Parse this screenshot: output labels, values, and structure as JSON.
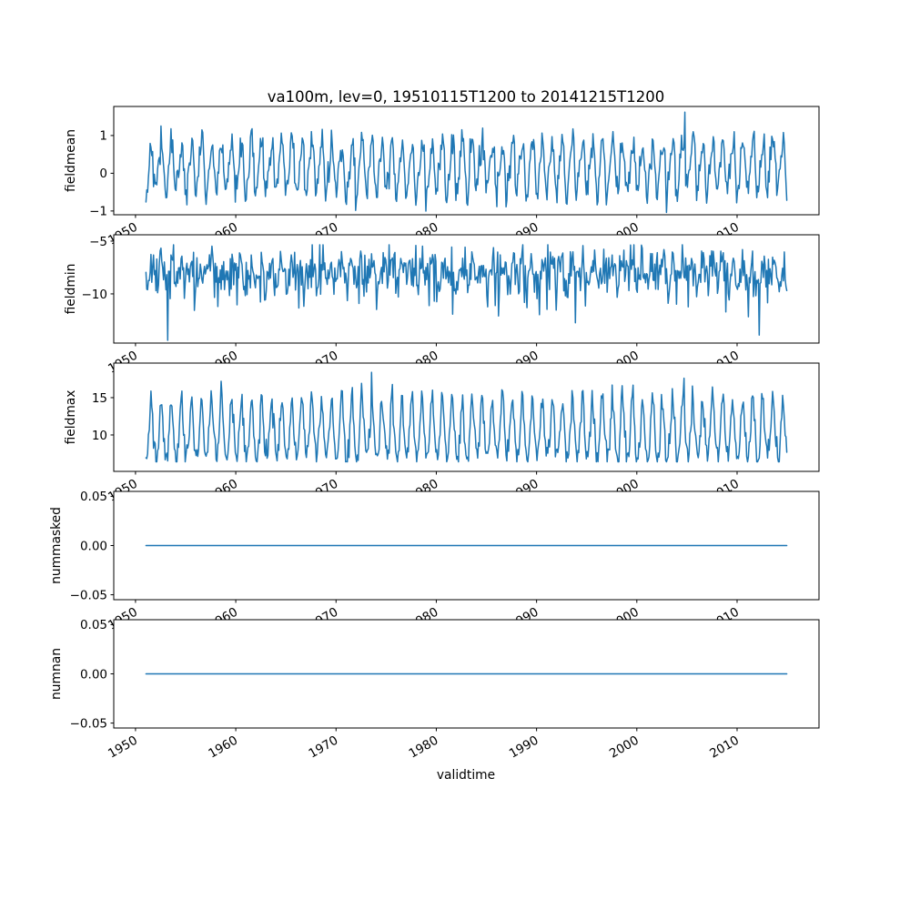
{
  "figure": {
    "title": "va100m, lev=0, 19510115T1200 to 20141215T1200",
    "xlabel": "validtime",
    "background": "#ffffff",
    "axis_color": "#000000",
    "line_color": "#1f77b4"
  },
  "chart_data": [
    {
      "type": "line",
      "ylabel": "fieldmean",
      "ylim": [
        -1.1,
        1.77
      ],
      "yticks": {
        "values": [
          1,
          0,
          -1
        ],
        "labels": [
          "1",
          "0",
          "−1"
        ]
      },
      "xlim": [
        1947.83,
        2018.17
      ],
      "xticks": {
        "values": [
          1950,
          1960,
          1970,
          1980,
          1990,
          2000,
          2010
        ],
        "labels": [
          "1950",
          "1960",
          "1970",
          "1980",
          "1990",
          "2000",
          "2010"
        ],
        "rotation_deg": 30
      },
      "x_start": 1951.042,
      "x_end": 2014.958,
      "n_points": 768,
      "line_color": "#1f77b4",
      "seed": 42,
      "pattern": {
        "kind": "seasonal",
        "base": 0.16,
        "amp": 0.66,
        "peak_month": 6.3,
        "amp2": 0.14,
        "peak2": 2,
        "noise": 0.21,
        "clamp": [
          -1.04,
          1.63
        ],
        "spikes": [
          {
            "x": 2004.83,
            "v": 1.62
          }
        ]
      }
    },
    {
      "type": "line",
      "ylabel": "fieldmin",
      "ylim": [
        -14.66,
        -4.4
      ],
      "yticks": {
        "values": [
          -5,
          -10
        ],
        "labels": [
          "−5",
          "−10"
        ]
      },
      "xlim": [
        1947.83,
        2018.17
      ],
      "xticks": {
        "values": [
          1950,
          1960,
          1970,
          1980,
          1990,
          2000,
          2010
        ],
        "labels": [
          "1950",
          "1960",
          "1970",
          "1980",
          "1990",
          "2000",
          "2010"
        ],
        "rotation_deg": 30
      },
      "x_start": 1951.042,
      "x_end": 2014.958,
      "n_points": 768,
      "line_color": "#1f77b4",
      "seed": 1337,
      "pattern": {
        "kind": "seasonal",
        "base": -7.9,
        "amp": 0.8,
        "peak_month": 6.5,
        "noise": 1.05,
        "dip_prob": 0.05,
        "dip_base": 1.2,
        "dip_span": 3.2,
        "clamp": [
          -14.45,
          -5.35
        ],
        "spikes": [
          {
            "x": 1953.2,
            "v": -14.4
          },
          {
            "x": 2012.2,
            "v": -13.9
          }
        ]
      }
    },
    {
      "type": "line",
      "ylabel": "fieldmax",
      "ylim": [
        5.12,
        19.63
      ],
      "yticks": {
        "values": [
          15,
          10
        ],
        "labels": [
          "15",
          "10"
        ]
      },
      "xlim": [
        1947.83,
        2018.17
      ],
      "xticks": {
        "values": [
          1950,
          1960,
          1970,
          1980,
          1990,
          2000,
          2010
        ],
        "labels": [
          "1950",
          "1960",
          "1970",
          "1980",
          "1990",
          "2000",
          "2010"
        ],
        "rotation_deg": 30
      },
      "x_start": 1951.042,
      "x_end": 2014.958,
      "n_points": 768,
      "line_color": "#1f77b4",
      "seed": 2024,
      "pattern": {
        "kind": "seasonal",
        "base": 10.0,
        "amp": 3.0,
        "peak_month": 6.4,
        "sharp": 2.2,
        "noise": 0.85,
        "clamp": [
          6.4,
          18.45
        ],
        "spikes": [
          {
            "x": 1973.54,
            "v": 18.4
          },
          {
            "x": 2004.7,
            "v": 17.6
          }
        ]
      }
    },
    {
      "type": "line",
      "ylabel": "nummasked",
      "ylim": [
        -0.055,
        0.055
      ],
      "yticks": {
        "values": [
          0.05,
          0.0,
          -0.05
        ],
        "labels": [
          "0.05",
          "0.00",
          "−0.05"
        ]
      },
      "xlim": [
        1947.83,
        2018.17
      ],
      "xticks": {
        "values": [
          1950,
          1960,
          1970,
          1980,
          1990,
          2000,
          2010
        ],
        "labels": [
          "1950",
          "1960",
          "1970",
          "1980",
          "1990",
          "2000",
          "2010"
        ],
        "rotation_deg": 30
      },
      "x_start": 1951.042,
      "x_end": 2014.958,
      "n_points": 768,
      "line_color": "#1f77b4",
      "seed": 7,
      "pattern": {
        "kind": "constant",
        "value": 0.0
      }
    },
    {
      "type": "line",
      "ylabel": "numnan",
      "ylim": [
        -0.055,
        0.055
      ],
      "yticks": {
        "values": [
          0.05,
          0.0,
          -0.05
        ],
        "labels": [
          "0.05",
          "0.00",
          "−0.05"
        ]
      },
      "xlim": [
        1947.83,
        2018.17
      ],
      "xticks": {
        "values": [
          1950,
          1960,
          1970,
          1980,
          1990,
          2000,
          2010
        ],
        "labels": [
          "1950",
          "1960",
          "1970",
          "1980",
          "1990",
          "2000",
          "2010"
        ],
        "rotation_deg": 30
      },
      "x_start": 1951.042,
      "x_end": 2014.958,
      "n_points": 768,
      "line_color": "#1f77b4",
      "seed": 8,
      "pattern": {
        "kind": "constant",
        "value": 0.0
      }
    }
  ]
}
